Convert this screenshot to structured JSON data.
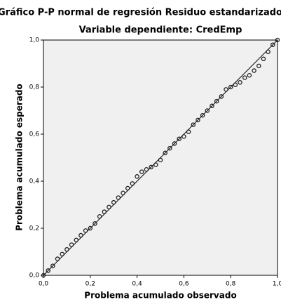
{
  "chart_data": {
    "type": "scatter",
    "title": "Gráfico P-P normal de regresión Residuo estandarizado",
    "subtitle": "Variable dependiente: CredEmp",
    "xlabel": "Problema acumulado observado",
    "ylabel": "Problema acumulado esperado",
    "x": [
      0,
      0.02,
      0.04,
      0.06,
      0.08,
      0.1,
      0.12,
      0.14,
      0.16,
      0.18,
      0.2,
      0.22,
      0.24,
      0.26,
      0.28,
      0.3,
      0.32,
      0.34,
      0.36,
      0.38,
      0.4,
      0.42,
      0.44,
      0.46,
      0.48,
      0.5,
      0.52,
      0.54,
      0.56,
      0.58,
      0.6,
      0.62,
      0.64,
      0.66,
      0.68,
      0.7,
      0.72,
      0.74,
      0.76,
      0.78,
      0.8,
      0.82,
      0.84,
      0.86,
      0.88,
      0.9,
      0.92,
      0.94,
      0.96,
      0.98,
      1.0
    ],
    "values": [
      0,
      0.02,
      0.04,
      0.07,
      0.09,
      0.11,
      0.13,
      0.15,
      0.17,
      0.19,
      0.2,
      0.22,
      0.25,
      0.27,
      0.29,
      0.31,
      0.33,
      0.35,
      0.37,
      0.39,
      0.42,
      0.44,
      0.45,
      0.46,
      0.47,
      0.49,
      0.52,
      0.54,
      0.56,
      0.58,
      0.59,
      0.61,
      0.64,
      0.66,
      0.68,
      0.7,
      0.72,
      0.74,
      0.76,
      0.79,
      0.8,
      0.81,
      0.82,
      0.84,
      0.85,
      0.87,
      0.89,
      0.92,
      0.95,
      0.98,
      1.0
    ],
    "color": "#222222",
    "xlim": [
      0,
      1
    ],
    "ylim": [
      0,
      1
    ],
    "xticks": [
      {
        "value": 0,
        "label": "0,0"
      },
      {
        "value": 0.2,
        "label": "0,2"
      },
      {
        "value": 0.4,
        "label": "0,4"
      },
      {
        "value": 0.6,
        "label": "0,6"
      },
      {
        "value": 0.8,
        "label": "0,8"
      },
      {
        "value": 1,
        "label": "1,0"
      }
    ],
    "yticks": [
      {
        "value": 0,
        "label": "0,0"
      },
      {
        "value": 0.2,
        "label": "0,2"
      },
      {
        "value": 0.4,
        "label": "0,4"
      },
      {
        "value": 0.6,
        "label": "0,6"
      },
      {
        "value": 0.8,
        "label": "0,8"
      },
      {
        "value": 1,
        "label": "1,0"
      }
    ]
  }
}
